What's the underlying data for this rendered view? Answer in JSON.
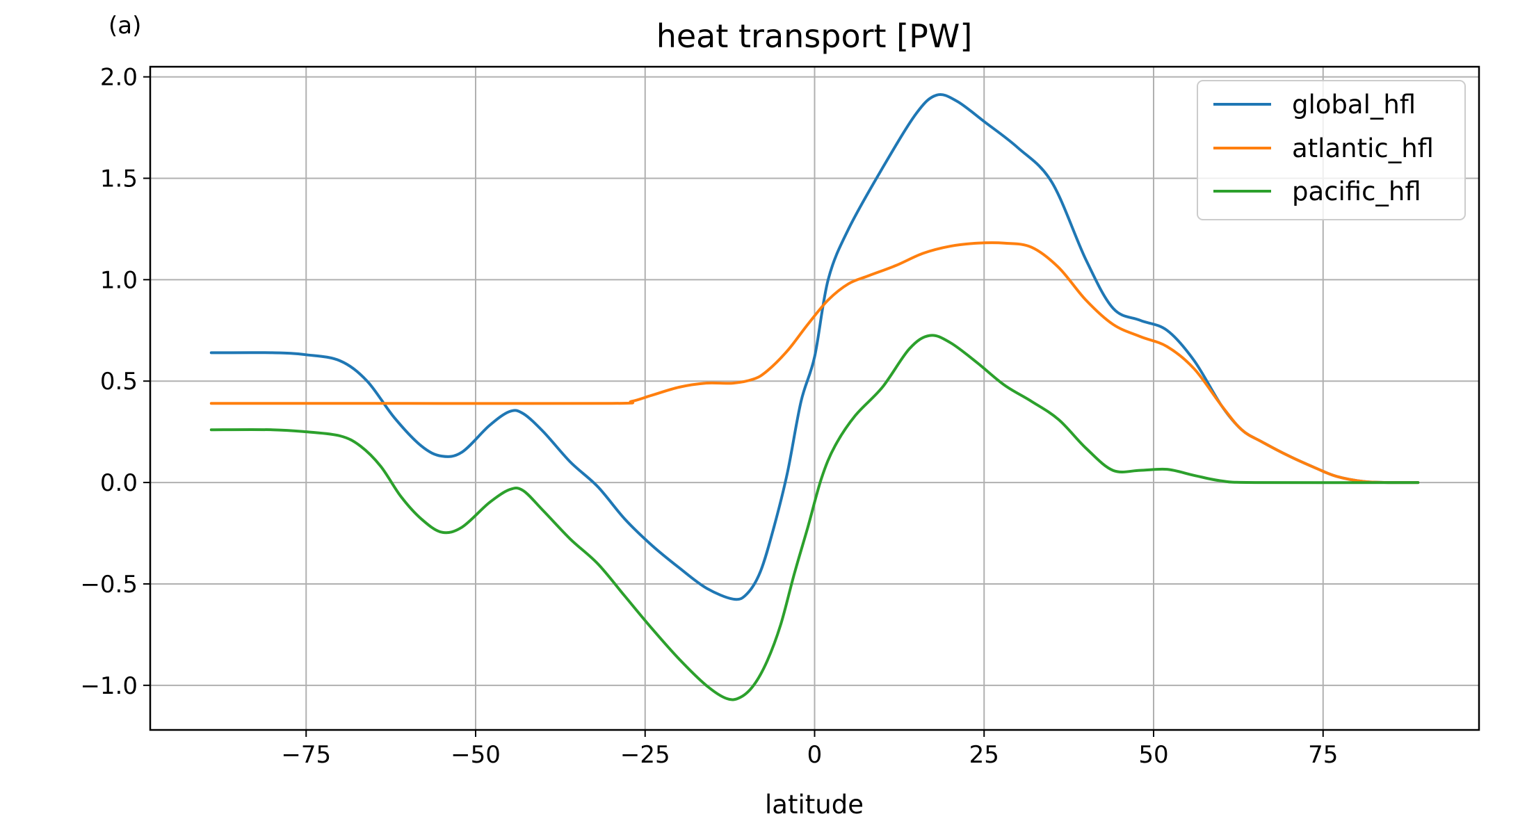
{
  "panel_label": "(a)",
  "chart_data": {
    "type": "line",
    "title": "heat transport [PW]",
    "xlabel": "latitude",
    "ylabel": "",
    "xlim": [
      -98,
      98
    ],
    "ylim": [
      -1.22,
      2.05
    ],
    "xticks": [
      -75,
      -50,
      -25,
      0,
      25,
      50,
      75
    ],
    "xtick_labels": [
      "−75",
      "−50",
      "−25",
      "0",
      "25",
      "50",
      "75"
    ],
    "yticks": [
      -1.0,
      -0.5,
      0.0,
      0.5,
      1.0,
      1.5,
      2.0
    ],
    "ytick_labels": [
      "−1.0",
      "−0.5",
      "0.0",
      "0.5",
      "1.0",
      "1.5",
      "2.0"
    ],
    "grid": true,
    "legend_position": "top-right",
    "series": [
      {
        "name": "global_hfl",
        "color": "#1f77b4",
        "points": [
          [
            -89,
            0.64
          ],
          [
            -80,
            0.64
          ],
          [
            -75,
            0.63
          ],
          [
            -70,
            0.6
          ],
          [
            -66,
            0.5
          ],
          [
            -62,
            0.32
          ],
          [
            -58,
            0.18
          ],
          [
            -55,
            0.13
          ],
          [
            -52,
            0.15
          ],
          [
            -48,
            0.28
          ],
          [
            -45,
            0.35
          ],
          [
            -43,
            0.34
          ],
          [
            -40,
            0.25
          ],
          [
            -36,
            0.1
          ],
          [
            -32,
            -0.02
          ],
          [
            -28,
            -0.18
          ],
          [
            -24,
            -0.31
          ],
          [
            -20,
            -0.42
          ],
          [
            -16,
            -0.52
          ],
          [
            -12,
            -0.575
          ],
          [
            -10,
            -0.55
          ],
          [
            -8,
            -0.44
          ],
          [
            -6,
            -0.22
          ],
          [
            -4,
            0.05
          ],
          [
            -2,
            0.4
          ],
          [
            0,
            0.62
          ],
          [
            2,
            1.0
          ],
          [
            5,
            1.25
          ],
          [
            10,
            1.55
          ],
          [
            15,
            1.82
          ],
          [
            18,
            1.91
          ],
          [
            21,
            1.88
          ],
          [
            25,
            1.78
          ],
          [
            30,
            1.65
          ],
          [
            35,
            1.48
          ],
          [
            40,
            1.1
          ],
          [
            44,
            0.86
          ],
          [
            48,
            0.8
          ],
          [
            52,
            0.75
          ],
          [
            56,
            0.6
          ],
          [
            60,
            0.38
          ],
          [
            63,
            0.26
          ],
          [
            66,
            0.2
          ],
          [
            70,
            0.13
          ],
          [
            74,
            0.07
          ],
          [
            77,
            0.03
          ],
          [
            81,
            0.005
          ],
          [
            85,
            0.0
          ],
          [
            89,
            0.0
          ]
        ]
      },
      {
        "name": "atlantic_hfl",
        "color": "#ff7f0e",
        "points": [
          [
            -89,
            0.39
          ],
          [
            -60,
            0.39
          ],
          [
            -30,
            0.39
          ],
          [
            -27,
            0.4
          ],
          [
            -24,
            0.43
          ],
          [
            -20,
            0.47
          ],
          [
            -16,
            0.49
          ],
          [
            -12,
            0.49
          ],
          [
            -9,
            0.51
          ],
          [
            -7,
            0.55
          ],
          [
            -4,
            0.65
          ],
          [
            -1,
            0.78
          ],
          [
            2,
            0.9
          ],
          [
            5,
            0.98
          ],
          [
            8,
            1.02
          ],
          [
            12,
            1.07
          ],
          [
            16,
            1.13
          ],
          [
            20,
            1.165
          ],
          [
            24,
            1.18
          ],
          [
            28,
            1.18
          ],
          [
            32,
            1.16
          ],
          [
            36,
            1.06
          ],
          [
            40,
            0.9
          ],
          [
            44,
            0.78
          ],
          [
            48,
            0.72
          ],
          [
            52,
            0.67
          ],
          [
            56,
            0.56
          ],
          [
            60,
            0.38
          ],
          [
            63,
            0.26
          ],
          [
            66,
            0.2
          ],
          [
            70,
            0.13
          ],
          [
            74,
            0.07
          ],
          [
            77,
            0.03
          ],
          [
            81,
            0.005
          ],
          [
            85,
            0.0
          ],
          [
            89,
            0.0
          ]
        ]
      },
      {
        "name": "pacific_hfl",
        "color": "#2ca02c",
        "points": [
          [
            -89,
            0.26
          ],
          [
            -80,
            0.26
          ],
          [
            -75,
            0.25
          ],
          [
            -70,
            0.23
          ],
          [
            -67,
            0.18
          ],
          [
            -64,
            0.08
          ],
          [
            -61,
            -0.07
          ],
          [
            -58,
            -0.18
          ],
          [
            -55,
            -0.245
          ],
          [
            -52,
            -0.22
          ],
          [
            -48,
            -0.1
          ],
          [
            -45,
            -0.035
          ],
          [
            -43,
            -0.04
          ],
          [
            -40,
            -0.14
          ],
          [
            -36,
            -0.28
          ],
          [
            -32,
            -0.4
          ],
          [
            -28,
            -0.56
          ],
          [
            -24,
            -0.72
          ],
          [
            -20,
            -0.87
          ],
          [
            -16,
            -1.0
          ],
          [
            -13,
            -1.065
          ],
          [
            -11,
            -1.06
          ],
          [
            -9,
            -1.0
          ],
          [
            -7,
            -0.88
          ],
          [
            -5,
            -0.7
          ],
          [
            -3,
            -0.45
          ],
          [
            -1,
            -0.22
          ],
          [
            1,
            0.02
          ],
          [
            3,
            0.18
          ],
          [
            6,
            0.33
          ],
          [
            10,
            0.47
          ],
          [
            14,
            0.66
          ],
          [
            17,
            0.725
          ],
          [
            20,
            0.69
          ],
          [
            24,
            0.59
          ],
          [
            28,
            0.48
          ],
          [
            32,
            0.4
          ],
          [
            36,
            0.31
          ],
          [
            40,
            0.17
          ],
          [
            44,
            0.06
          ],
          [
            48,
            0.06
          ],
          [
            52,
            0.065
          ],
          [
            56,
            0.035
          ],
          [
            60,
            0.008
          ],
          [
            65,
            0.0
          ],
          [
            89,
            0.0
          ]
        ]
      }
    ]
  }
}
